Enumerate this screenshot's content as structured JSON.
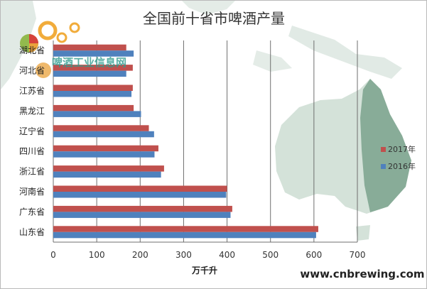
{
  "chart_data": {
    "type": "bar",
    "orientation": "horizontal",
    "title": "全国前十省市啤酒产量",
    "xlabel": "万千升",
    "xlim": [
      0,
      700
    ],
    "xticks": [
      0,
      100,
      200,
      300,
      400,
      500,
      600,
      700
    ],
    "categories": [
      "湖北省",
      "河北省",
      "江苏省",
      "黑龙江",
      "辽宁省",
      "四川省",
      "浙江省",
      "河南省",
      "广东省",
      "山东省"
    ],
    "series": [
      {
        "name": "2017年",
        "color": "#c0504d",
        "values": [
          168,
          183,
          183,
          185,
          220,
          242,
          255,
          400,
          412,
          610
        ]
      },
      {
        "name": "2016年",
        "color": "#4f81bd",
        "values": [
          185,
          168,
          180,
          202,
          232,
          233,
          248,
          398,
          408,
          605
        ]
      }
    ],
    "grid": true,
    "legend_position": "right"
  },
  "watermark": {
    "text": "啤酒工业信息网"
  },
  "website": "www.cnbrewing.com"
}
